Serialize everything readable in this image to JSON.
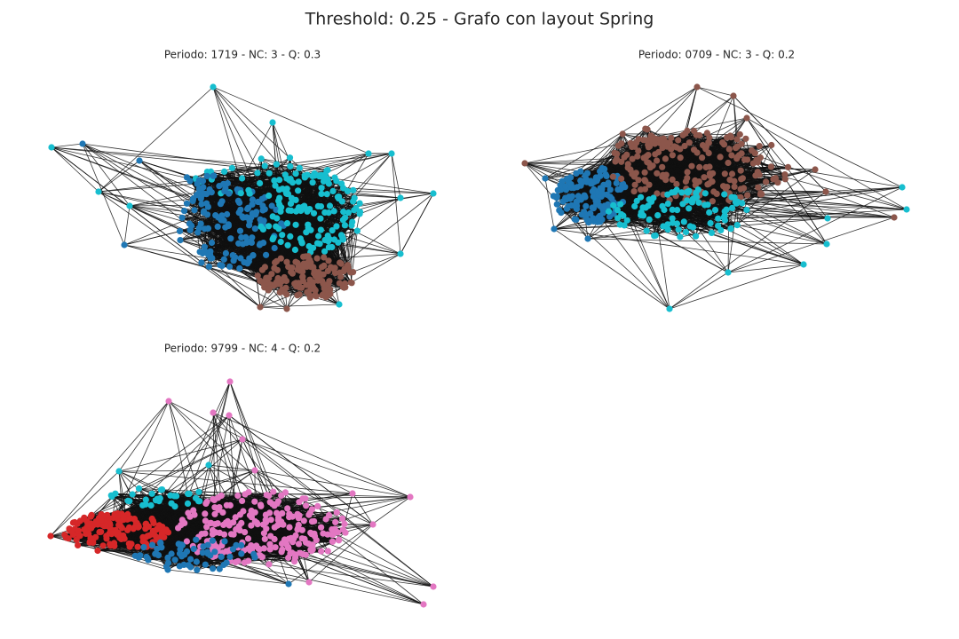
{
  "title": "Threshold: 0.25 - Grafo con layout Spring",
  "subplots": [
    {
      "title": "Periodo: 1719 - NC: 3 - Q: 0.3"
    },
    {
      "title": "Periodo: 0709 - NC: 3 - Q: 0.2"
    },
    {
      "title": "Periodo: 9799 - NC: 4 - Q: 0.2"
    }
  ]
}
